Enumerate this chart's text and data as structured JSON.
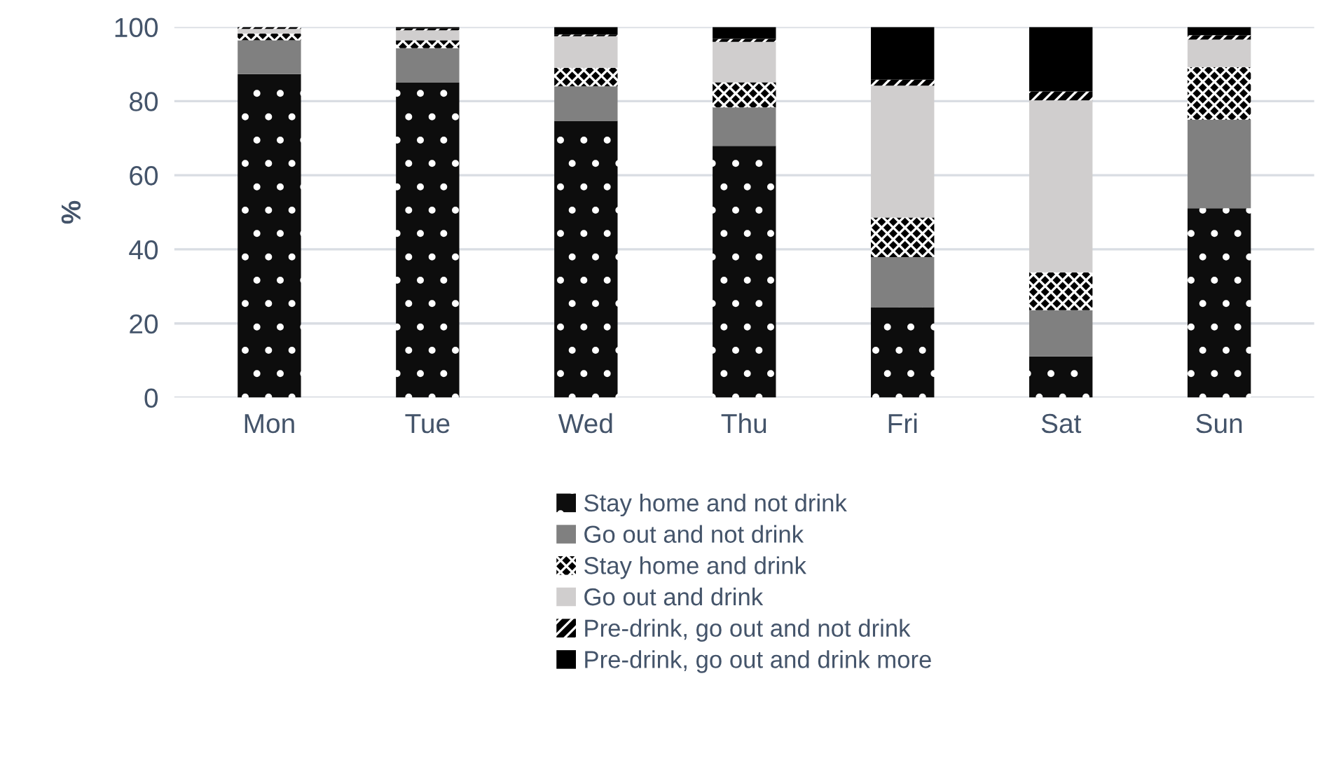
{
  "chart_data": {
    "type": "bar",
    "stacked": true,
    "ylabel": "%",
    "categories": [
      "Mon",
      "Tue",
      "Wed",
      "Thu",
      "Fri",
      "Sat",
      "Sun"
    ],
    "series": [
      {
        "name": "Stay home and not drink",
        "color": "#0d0d0d",
        "values": [
          87.3,
          85.0,
          74.7,
          67.9,
          24.4,
          11.1,
          51.1
        ]
      },
      {
        "name": "Go out and not drink",
        "color": "#808080",
        "values": [
          9.1,
          9.3,
          9.3,
          10.4,
          13.5,
          12.5,
          23.9
        ]
      },
      {
        "name": "Stay home and drink",
        "color": "#000000",
        "values": [
          1.8,
          2.1,
          5.0,
          6.8,
          10.7,
          10.2,
          14.2
        ]
      },
      {
        "name": "Go out and drink",
        "color": "#d0cece",
        "values": [
          1.3,
          2.7,
          8.5,
          10.9,
          35.6,
          46.4,
          7.4
        ]
      },
      {
        "name": "Pre-drink, go out and not drink",
        "color": "#000000",
        "values": [
          0.5,
          0.5,
          0.5,
          0.8,
          1.6,
          2.4,
          1.2
        ]
      },
      {
        "name": "Pre-drink, go out and drink more",
        "color": "#000000",
        "values": [
          0,
          0.4,
          2.0,
          3.2,
          14.2,
          17.4,
          2.2
        ]
      }
    ],
    "ylim": [
      0,
      100
    ],
    "yticks": [
      0,
      20,
      40,
      60,
      80,
      100
    ],
    "grid": "y",
    "legend": "bottom"
  }
}
